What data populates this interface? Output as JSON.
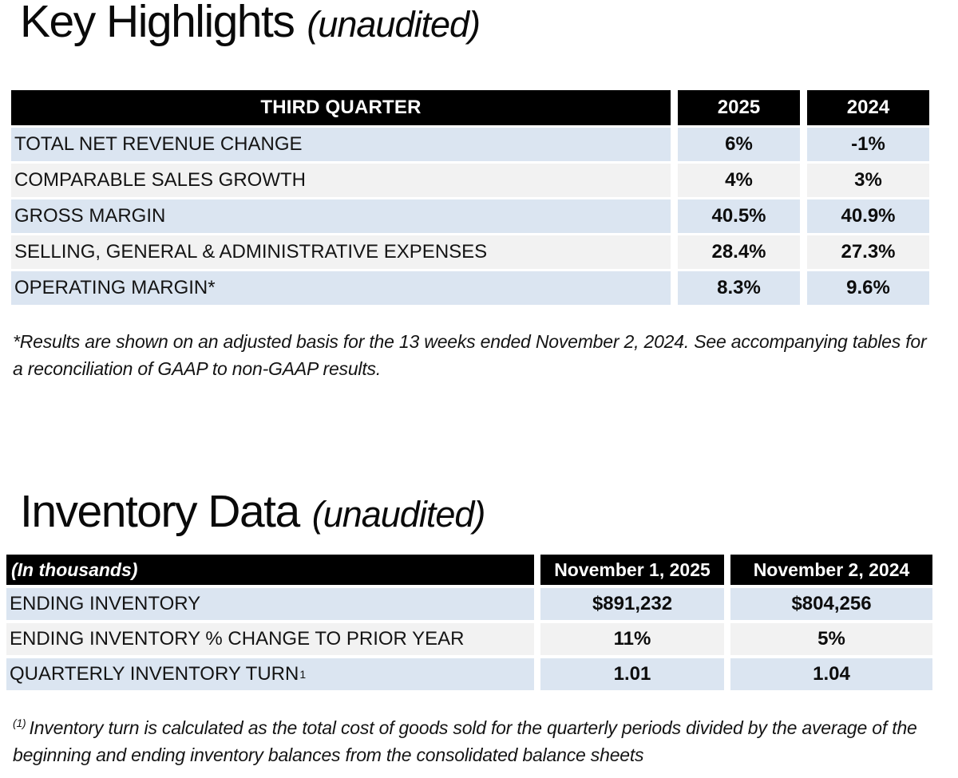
{
  "colors": {
    "header_bg": "#000000",
    "header_text": "#ffffff",
    "row_blue": "#dbe5f1",
    "row_gray": "#f2f2f2",
    "page_bg": "#ffffff",
    "text": "#101010"
  },
  "key_highlights": {
    "title": "Key Highlights",
    "title_suffix": "(unaudited)",
    "table": {
      "header": {
        "label": "THIRD QUARTER",
        "col1": "2025",
        "col2": "2024"
      },
      "rows": [
        {
          "label": "TOTAL NET REVENUE CHANGE",
          "v2025": "6%",
          "v2024": "-1%"
        },
        {
          "label": "COMPARABLE SALES GROWTH",
          "v2025": "4%",
          "v2024": "3%"
        },
        {
          "label": "GROSS MARGIN",
          "v2025": "40.5%",
          "v2024": "40.9%"
        },
        {
          "label": "SELLING, GENERAL & ADMINISTRATIVE EXPENSES",
          "v2025": "28.4%",
          "v2024": "27.3%"
        },
        {
          "label": "OPERATING MARGIN*",
          "v2025": "8.3%",
          "v2024": "9.6%"
        }
      ]
    },
    "footnote": "*Results are shown on an adjusted basis for the 13 weeks ended November 2, 2024. See accompanying tables for a reconciliation of GAAP to non-GAAP results."
  },
  "inventory_data": {
    "title": "Inventory Data",
    "title_suffix": "(unaudited)",
    "table": {
      "header": {
        "label": "(In thousands)",
        "col1": "November 1, 2025",
        "col2": "November 2, 2024"
      },
      "rows": [
        {
          "label": "ENDING INVENTORY",
          "label_sup": "",
          "v2025": "$891,232",
          "v2024": "$804,256"
        },
        {
          "label": "ENDING INVENTORY % CHANGE TO PRIOR YEAR",
          "label_sup": "",
          "v2025": "11%",
          "v2024": "5%"
        },
        {
          "label": "QUARTERLY INVENTORY TURN",
          "label_sup": "1",
          "v2025": "1.01",
          "v2024": "1.04"
        }
      ]
    },
    "footnote_sup": "(1)",
    "footnote": "Inventory turn is calculated as the total cost of goods sold for the quarterly periods divided by the average of the beginning and ending inventory balances from the consolidated balance sheets"
  }
}
